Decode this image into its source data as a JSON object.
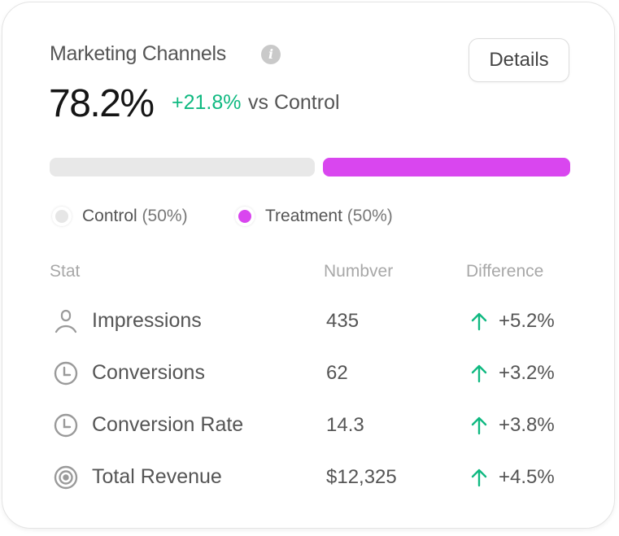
{
  "card": {
    "title": "Marketing Channels",
    "info_icon": "info-icon",
    "value": "78.2%",
    "delta": "+21.8%",
    "delta_suffix": "vs Control",
    "details_label": "Details",
    "split": {
      "control_fraction": 0.5,
      "treatment_fraction": 0.5
    },
    "colors": {
      "control": "#e8e8e8",
      "treatment": "#d946ef",
      "positive": "#10b981"
    },
    "legend": [
      {
        "label": "Control",
        "pct": "(50%)"
      },
      {
        "label": "Treatment",
        "pct": "(50%)"
      }
    ],
    "table": {
      "headers": [
        "Stat",
        "Numbver",
        "Difference"
      ],
      "rows": [
        {
          "icon": "user-icon",
          "label": "Impressions",
          "number": "435",
          "diff": "+5.2%"
        },
        {
          "icon": "clock-icon",
          "label": "Conversions",
          "number": "62",
          "diff": "+3.2%"
        },
        {
          "icon": "clock-icon",
          "label": "Conversion Rate",
          "number": "14.3",
          "diff": "+3.8%"
        },
        {
          "icon": "target-icon",
          "label": "Total Revenue",
          "number": "$12,325",
          "diff": "+4.5%"
        }
      ]
    }
  }
}
